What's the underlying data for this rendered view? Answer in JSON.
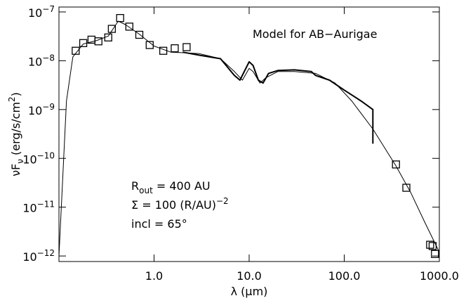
{
  "chart_data": {
    "type": "sed",
    "annotations": [
      "Model for AB−Aurigae",
      "R_{out} = 400 AU",
      "Σ   = 100 (R/AU)^{−2}",
      "incl = 65°"
    ],
    "xlabel": "λ (μm)",
    "ylabel": "νF_{ν} (erg/s/cm^{2})",
    "xscale": "log",
    "yscale": "log",
    "xlim": [
      0.1,
      1000
    ],
    "ylim": [
      7.7e-13,
      1.26e-07
    ],
    "xticks": [
      0.1,
      {
        "value": 1,
        "label": "1.0"
      },
      {
        "value": 10,
        "label": "10.0"
      },
      {
        "value": 100,
        "label": "100.0"
      },
      {
        "value": 1000,
        "label": "1000.0"
      }
    ],
    "yticks": [
      {
        "value": 1e-12,
        "label": "10^{−12}"
      },
      {
        "value": 1e-11,
        "label": "10^{−11}"
      },
      {
        "value": 1e-10,
        "label": "10^{−10}"
      },
      {
        "value": 1e-09,
        "label": "10^{−9}"
      },
      {
        "value": 1e-08,
        "label": "10^{−8}"
      },
      {
        "value": 1e-07,
        "label": "10^{−7}"
      }
    ],
    "series": [
      {
        "kind": "line",
        "width": 1,
        "color": "#000000",
        "x": [
          0.1,
          0.12,
          0.14,
          0.18,
          0.25,
          0.33,
          0.42,
          0.5,
          0.7,
          1.0,
          1.5,
          2.2,
          3,
          5,
          7,
          8.5,
          10,
          11,
          13,
          15,
          20,
          30,
          50,
          80,
          120,
          200,
          350,
          500,
          700,
          1000
        ],
        "values": [
          1e-12,
          1.5e-09,
          1.2e-08,
          2.2e-08,
          2.6e-08,
          3.2e-08,
          6.5e-08,
          5.5e-08,
          3.5e-08,
          2e-08,
          1.5e-08,
          1.45e-08,
          1.4e-08,
          1.1e-08,
          6e-09,
          4e-09,
          7e-09,
          6e-09,
          3.5e-09,
          4.5e-09,
          6e-09,
          6e-09,
          5.5e-09,
          3.5e-09,
          1.5e-09,
          4e-10,
          7e-11,
          2e-11,
          5e-12,
          1.2e-12
        ]
      },
      {
        "kind": "line",
        "width": 2,
        "color": "#000000",
        "x": [
          2,
          3,
          5,
          7,
          8,
          10,
          11,
          12.5,
          14,
          16,
          20,
          30,
          45,
          50,
          70,
          100,
          150,
          200,
          200
        ],
        "values": [
          1.5e-08,
          1.3e-08,
          1.1e-08,
          5e-09,
          4e-09,
          9.5e-09,
          8e-09,
          4e-09,
          3.5e-09,
          5.5e-09,
          6.3e-09,
          6.5e-09,
          6e-09,
          5e-09,
          4e-09,
          2.5e-09,
          1.5e-09,
          1e-09,
          2e-10
        ]
      },
      {
        "kind": "square",
        "color": "#000000",
        "x": [
          0.15,
          0.18,
          0.22,
          0.26,
          0.33,
          0.36,
          0.44,
          0.55,
          0.7,
          0.9,
          1.25,
          1.65,
          2.2,
          350,
          450,
          800,
          850,
          900
        ],
        "values": [
          1.6e-08,
          2.3e-08,
          2.7e-08,
          2.5e-08,
          3e-08,
          4.5e-08,
          7.5e-08,
          5e-08,
          3.4e-08,
          2.1e-08,
          1.6e-08,
          1.8e-08,
          1.9e-08,
          7.5e-11,
          2.5e-11,
          1.7e-12,
          1.6e-12,
          1.1e-12
        ]
      }
    ]
  }
}
